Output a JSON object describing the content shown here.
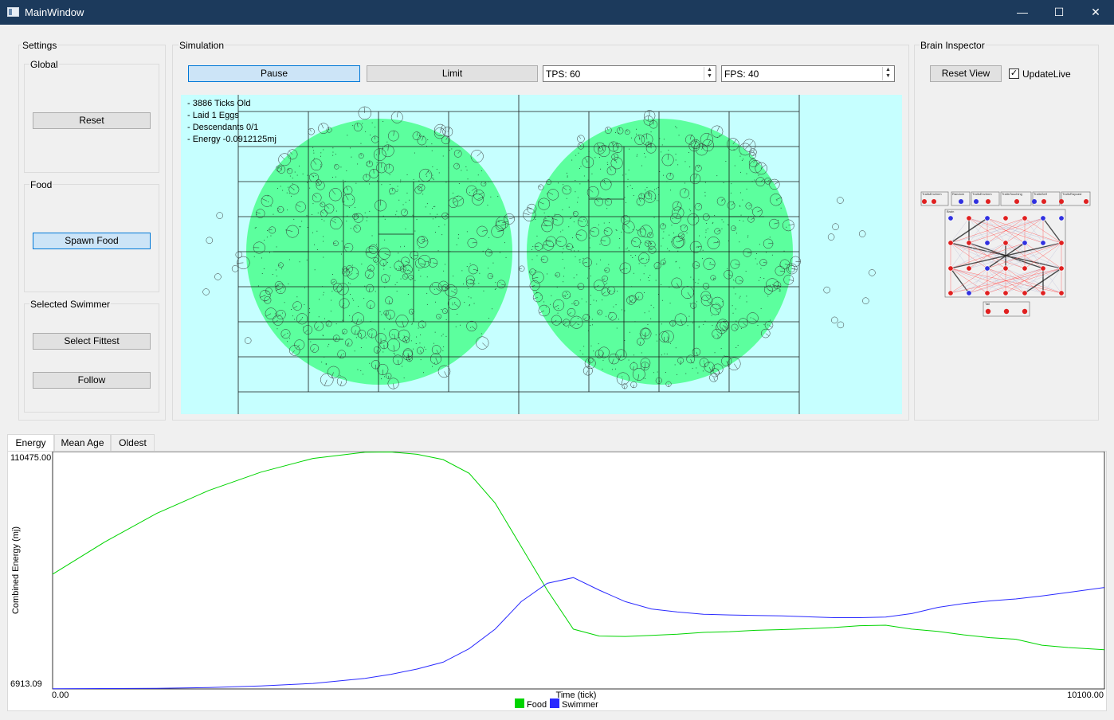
{
  "window": {
    "title": "MainWindow",
    "min_glyph": "—",
    "max_glyph": "☐",
    "close_glyph": "✕"
  },
  "settings": {
    "title": "Settings",
    "global": {
      "title": "Global",
      "reset_label": "Reset"
    },
    "food": {
      "title": "Food",
      "spawn_label": "Spawn Food"
    },
    "selected": {
      "title": "Selected Swimmer",
      "fittest_label": "Select Fittest",
      "follow_label": "Follow"
    }
  },
  "simulation": {
    "title": "Simulation",
    "pause_label": "Pause",
    "limit_label": "Limit",
    "tps": "TPS: 60",
    "fps": "FPS: 40",
    "overlay": [
      "- 3886 Ticks Old",
      "- Laid 1 Eggs",
      "- Descendants 0/1",
      "- Energy -0.0912125mj"
    ]
  },
  "brain": {
    "title": "Brain Inspector",
    "reset_view_label": "Reset View",
    "update_live_label": "UpdateLive",
    "update_live_checked": true,
    "input_boxes": [
      "TraitsEnvirnm",
      "Random",
      "TraitsEnvirnm",
      "TraitsTouching",
      "TraitsSelf",
      "TraitsRaycast"
    ],
    "brain_label": "Brain",
    "tail_label": "Tail"
  },
  "tabs": [
    {
      "label": "Energy",
      "active": true
    },
    {
      "label": "Mean Age",
      "active": false
    },
    {
      "label": "Oldest",
      "active": false
    }
  ],
  "colors": {
    "food": "#00d400",
    "swimmer": "#2a2aff",
    "food_zone": "#5cff9e",
    "sim_bg": "#c6ffff"
  },
  "chart_data": {
    "type": "line",
    "title": "",
    "xlabel": "Time (tick)",
    "ylabel": "Combined Energy (mj)",
    "xlim": [
      0,
      10100
    ],
    "ylim": [
      6913.09,
      110475.0
    ],
    "x_min_label": "0.00",
    "x_max_label": "10100.00",
    "y_min_label": "6913.09",
    "y_max_label": "110475.00",
    "x": [
      0,
      500,
      1000,
      1500,
      2000,
      2500,
      3000,
      3250,
      3500,
      3750,
      4000,
      4250,
      4500,
      4750,
      5000,
      5250,
      5500,
      5750,
      6000,
      6250,
      6500,
      6750,
      7000,
      7250,
      7500,
      7750,
      8000,
      8250,
      8500,
      8750,
      9000,
      9250,
      9500,
      9750,
      10100
    ],
    "series": [
      {
        "name": "Food",
        "color": "#00d400",
        "values": [
          57000,
          71000,
          83500,
          93500,
          101500,
          107500,
          110200,
          110300,
          109300,
          107000,
          101000,
          88000,
          69000,
          50000,
          33000,
          30000,
          29800,
          30300,
          30800,
          31600,
          31900,
          32500,
          32800,
          33200,
          33700,
          34500,
          34700,
          33000,
          32000,
          30500,
          29300,
          28600,
          26000,
          25000,
          24000
        ]
      },
      {
        "name": "Swimmer",
        "color": "#2a2aff",
        "values": [
          7000,
          7100,
          7200,
          7500,
          8200,
          9300,
          11500,
          13300,
          15600,
          18600,
          24500,
          33000,
          45000,
          53000,
          55500,
          50000,
          45000,
          41800,
          40500,
          39500,
          39200,
          39000,
          38800,
          38400,
          38000,
          38000,
          38300,
          39800,
          42500,
          44200,
          45300,
          46200,
          47500,
          49000,
          51200
        ]
      }
    ],
    "legend": "bottom-center"
  }
}
